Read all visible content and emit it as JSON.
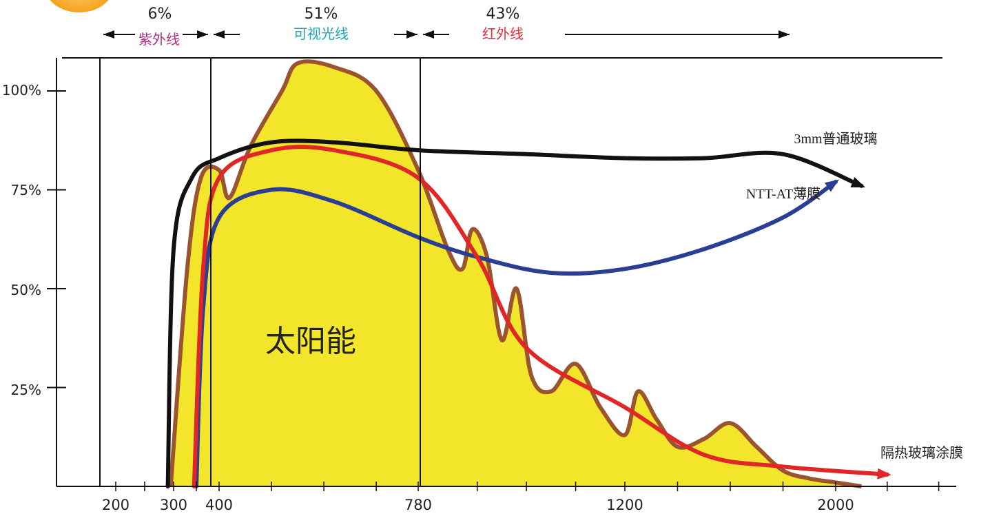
{
  "chart_data": {
    "type": "area",
    "title": "",
    "y_ticks": [
      "100%",
      "75%",
      "50%",
      "25%"
    ],
    "x_ticks": [
      "200",
      "300",
      "400",
      "780",
      "1200",
      "2000"
    ],
    "bands": [
      {
        "percent": "6%",
        "label": "紫外线",
        "color": "#b0308a"
      },
      {
        "percent": "51%",
        "label": "可视光线",
        "color": "#1aa6b6"
      },
      {
        "percent": "43%",
        "label": "红外线",
        "color": "#e0303a"
      }
    ],
    "area_label": "太阳能",
    "colors": {
      "area_fill": "#f3e62a",
      "area_stroke": "#9a5530",
      "s1": "#111111",
      "s2": "#2a3f94",
      "s3": "#e02626"
    },
    "series": [
      {
        "name": "3mm普通玻璃",
        "color": "#111111",
        "x": [
          290,
          300,
          340,
          400,
          500,
          620,
          780,
          1000,
          1200,
          1500,
          1800,
          2100
        ],
        "y": [
          0,
          60,
          78,
          83,
          87,
          87,
          85,
          84,
          83,
          83,
          84,
          76
        ]
      },
      {
        "name": "NTT-AT薄膜",
        "color": "#2a3f94",
        "x": [
          350,
          365,
          400,
          500,
          620,
          780,
          900,
          1050,
          1200,
          1500,
          1800,
          2000
        ],
        "y": [
          0,
          45,
          68,
          75,
          72,
          63,
          58,
          54,
          55,
          60,
          68,
          77
        ]
      },
      {
        "name": "隔热玻璃涂膜",
        "color": "#e02626",
        "x": [
          345,
          365,
          400,
          500,
          620,
          780,
          900,
          1000,
          1200,
          1500,
          1800,
          2200
        ],
        "y": [
          0,
          55,
          78,
          85,
          85,
          78,
          58,
          35,
          20,
          8,
          5,
          3
        ]
      }
    ],
    "solar": {
      "x": [
        295,
        330,
        360,
        400,
        420,
        460,
        520,
        550,
        620,
        700,
        780,
        840,
        870,
        890,
        920,
        950,
        980,
        1010,
        1050,
        1100,
        1150,
        1200,
        1250,
        1320,
        1400,
        1500,
        1600,
        1700,
        1800,
        1900,
        2000,
        2100
      ],
      "y": [
        0,
        55,
        78,
        80,
        73,
        86,
        100,
        107,
        106,
        100,
        80,
        60,
        55,
        65,
        58,
        37,
        50,
        28,
        24,
        31,
        20,
        13,
        24,
        17,
        10,
        12,
        16,
        10,
        4,
        2,
        1,
        0
      ]
    }
  }
}
